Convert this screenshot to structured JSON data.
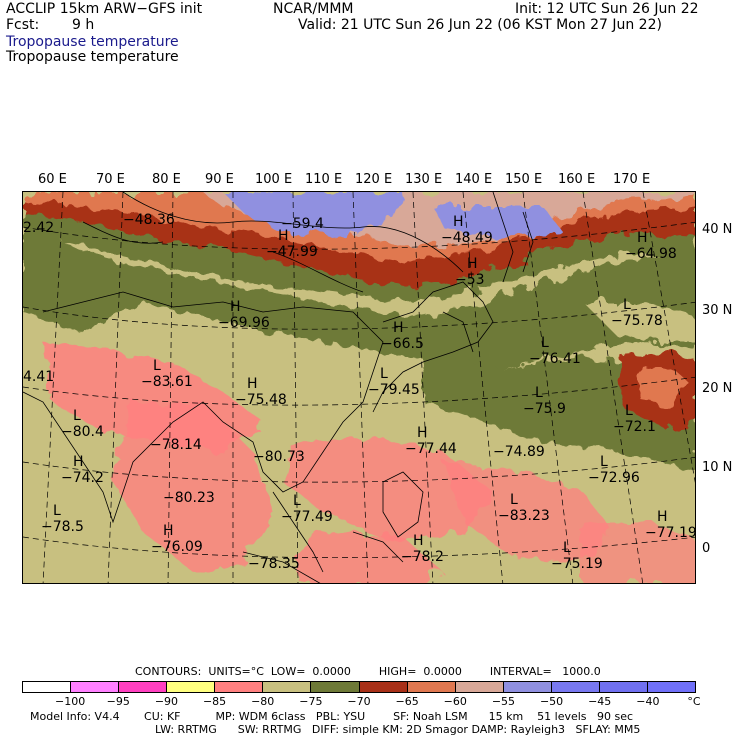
{
  "header": {
    "model": "ACCLIP 15km ARW−GFS init",
    "org": "NCAR/MMM",
    "init": "Init: 12 UTC Sun 26 Jun 22",
    "fcst_label": "Fcst:",
    "fcst_value": "9 h",
    "valid": "Valid: 21 UTC Sun 26 Jun 22 (06 KST Mon 27 Jun 22)",
    "field_blue": "Tropopause temperature",
    "field_black": "Tropopause temperature"
  },
  "map": {
    "lon_labels": [
      "60 E",
      "70 E",
      "80 E",
      "90 E",
      "100 E",
      "110 E",
      "120 E",
      "130 E",
      "140 E",
      "150 E",
      "160 E",
      "170 E"
    ],
    "lat_labels": [
      "40 N",
      "30 N",
      "20 N",
      "10 N",
      "0"
    ],
    "annotations": [
      {
        "mark": "",
        "value": "2.42"
      },
      {
        "mark": "",
        "value": "−48.36"
      },
      {
        "mark": "",
        "value": "−59.4"
      },
      {
        "mark": "H",
        "value": "−47.99"
      },
      {
        "mark": "H",
        "value": "−48.49"
      },
      {
        "mark": "H",
        "value": "−53"
      },
      {
        "mark": "H",
        "value": "−64.98"
      },
      {
        "mark": "H",
        "value": "−69.96"
      },
      {
        "mark": "L",
        "value": "−75.78"
      },
      {
        "mark": "H",
        "value": "−66.5"
      },
      {
        "mark": "L",
        "value": "−76.41"
      },
      {
        "mark": "L",
        "value": "−75.9"
      },
      {
        "mark": "L",
        "value": "−72.1"
      },
      {
        "mark": "",
        "value": "4.41"
      },
      {
        "mark": "L",
        "value": "−83.61"
      },
      {
        "mark": "H",
        "value": "−75.48"
      },
      {
        "mark": "L",
        "value": "−79.45"
      },
      {
        "mark": "L",
        "value": "−80.4"
      },
      {
        "mark": "",
        "value": "−78.14"
      },
      {
        "mark": "",
        "value": "−80.73"
      },
      {
        "mark": "H",
        "value": "−77.44"
      },
      {
        "mark": "",
        "value": "−74.89"
      },
      {
        "mark": "L",
        "value": "−72.96"
      },
      {
        "mark": "H",
        "value": "−74.2"
      },
      {
        "mark": "",
        "value": "−80.23"
      },
      {
        "mark": "L",
        "value": "−77.49"
      },
      {
        "mark": "L",
        "value": "−83.23"
      },
      {
        "mark": "L",
        "value": "−78.5"
      },
      {
        "mark": "H",
        "value": "−76.09"
      },
      {
        "mark": "H",
        "value": "−77.19"
      },
      {
        "mark": "",
        "value": "−78.35"
      },
      {
        "mark": "H",
        "value": "−78.2"
      },
      {
        "mark": "L",
        "value": "−75.19"
      }
    ]
  },
  "contours_line": "CONTOURS:  UNITS=°C  LOW=  0.0000        HIGH=  0.0000        INTERVAL=   1000.0",
  "colorbar": {
    "colors": [
      "#ffffff",
      "#ff80ff",
      "#ff40c0",
      "#ffff80",
      "#ff8080",
      "#c8c080",
      "#6e7a38",
      "#a83018",
      "#e07850",
      "#d8a898",
      "#9090e0",
      "#7878f0",
      "#7070f0",
      "#7070f8"
    ],
    "ticks": [
      "−100",
      "−95",
      "−90",
      "−85",
      "−80",
      "−75",
      "−70",
      "−65",
      "−60",
      "−55",
      "−50",
      "−45",
      "−40",
      "°C"
    ]
  },
  "footer": {
    "line1": "Model Info: V4.4       CU: KF          MP: WDM 6class   PBL: YSU        SF: Noah LSM      15 km    51 levels   90 sec",
    "line2": "LW: RRTMG      SW: RRTMG   DIFF: simple KM: 2D Smagor DAMP: Rayleigh3   SFLAY: MM5"
  }
}
